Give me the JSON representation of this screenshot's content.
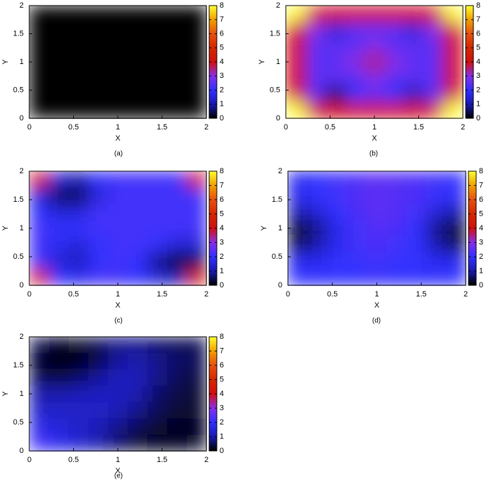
{
  "chart_data": [
    {
      "type": "heatmap",
      "caption": "(a)",
      "xlabel": "X",
      "ylabel": "Y",
      "xlim": [
        0,
        2
      ],
      "ylim": [
        0,
        2
      ],
      "xticks": [
        0,
        0.5,
        1,
        1.5,
        2
      ],
      "yticks": [
        0,
        0.5,
        1,
        1.5,
        2
      ],
      "clim": [
        0,
        8
      ],
      "cticks": [
        0,
        1,
        2,
        3,
        4,
        5,
        6,
        7,
        8
      ],
      "colormap": [
        "#000000",
        "#1a1ab0",
        "#3030ff",
        "#8a2ee8",
        "#d01010",
        "#d42800",
        "#e85010",
        "#f0a000",
        "#ffff30"
      ],
      "z": [
        [
          0,
          0,
          0,
          0,
          0,
          0,
          0,
          0,
          0
        ],
        [
          0,
          0,
          0,
          0,
          0,
          0,
          0,
          0,
          0
        ],
        [
          0,
          0,
          0,
          0,
          0,
          0,
          0,
          0,
          0
        ],
        [
          0,
          0,
          0,
          0,
          0,
          0,
          0,
          0,
          0
        ],
        [
          0,
          0,
          0,
          0,
          0,
          0,
          0,
          0,
          0
        ],
        [
          0,
          0,
          0,
          0,
          0,
          0,
          0,
          0,
          0
        ],
        [
          0,
          0,
          0,
          0,
          0,
          0,
          0,
          0,
          0
        ]
      ]
    },
    {
      "type": "heatmap",
      "caption": "(b)",
      "xlabel": "X",
      "ylabel": "Y",
      "xlim": [
        0,
        2
      ],
      "ylim": [
        0,
        2
      ],
      "xticks": [
        0,
        0.5,
        1,
        1.5,
        2
      ],
      "yticks": [
        0,
        0.5,
        1,
        1.5,
        2
      ],
      "clim": [
        0,
        8
      ],
      "cticks": [
        0,
        1,
        2,
        3,
        4,
        5,
        6,
        7,
        8
      ],
      "colormap": [
        "#000000",
        "#1a1ab0",
        "#3030ff",
        "#8a2ee8",
        "#d01010",
        "#d42800",
        "#e85010",
        "#f0a000",
        "#ffff30"
      ],
      "z": [
        [
          8,
          5,
          4,
          4,
          4,
          4,
          4,
          5,
          8
        ],
        [
          5,
          3,
          1.5,
          2.5,
          2.5,
          2.5,
          1.5,
          3,
          5
        ],
        [
          4,
          2.5,
          2.5,
          2.5,
          3,
          2.5,
          2.5,
          2.5,
          4
        ],
        [
          4,
          2.5,
          2.5,
          3,
          3.5,
          3,
          2.5,
          2.5,
          4
        ],
        [
          4,
          2.5,
          2.5,
          2.5,
          3,
          2.5,
          2.5,
          2.5,
          4
        ],
        [
          5,
          2.5,
          0.5,
          2,
          2.5,
          2,
          1,
          2.5,
          5
        ],
        [
          8,
          5,
          4,
          4,
          4,
          4,
          4,
          5,
          8
        ]
      ]
    },
    {
      "type": "heatmap",
      "caption": "(c)",
      "xlabel": "X",
      "ylabel": "Y",
      "xlim": [
        0,
        2
      ],
      "ylim": [
        0,
        2
      ],
      "xticks": [
        0,
        0.5,
        1,
        1.5,
        2
      ],
      "yticks": [
        0,
        0.5,
        1,
        1.5,
        2
      ],
      "clim": [
        0,
        8
      ],
      "cticks": [
        0,
        1,
        2,
        3,
        4,
        5,
        6,
        7,
        8
      ],
      "colormap": [
        "#000000",
        "#1a1ab0",
        "#3030ff",
        "#8a2ee8",
        "#d01010",
        "#d42800",
        "#e85010",
        "#f0a000",
        "#ffff30"
      ],
      "z": [
        [
          5,
          1.5,
          1,
          2,
          2.2,
          2.2,
          2.2,
          2.2,
          5
        ],
        [
          1.5,
          0.5,
          0.5,
          1.5,
          2.2,
          2.2,
          2.2,
          2.2,
          2.2
        ],
        [
          2,
          1.5,
          1.5,
          2.2,
          2.2,
          2.2,
          2.2,
          2.2,
          2.2
        ],
        [
          2.2,
          2,
          2,
          2.2,
          2.2,
          2.2,
          2.2,
          2.2,
          2.2
        ],
        [
          2.2,
          1.8,
          1.5,
          2,
          2.2,
          2.2,
          2,
          1.5,
          1.5
        ],
        [
          2.2,
          1.5,
          1.2,
          2,
          2.2,
          2,
          0.8,
          0.3,
          0.5
        ],
        [
          5,
          2,
          1.8,
          2.2,
          2.2,
          2,
          1.5,
          1,
          5
        ]
      ]
    },
    {
      "type": "heatmap",
      "caption": "(d)",
      "xlabel": "X",
      "ylabel": "Y",
      "xlim": [
        0,
        2
      ],
      "ylim": [
        0,
        2
      ],
      "xticks": [
        0,
        0.5,
        1,
        1.5,
        2
      ],
      "yticks": [
        0,
        0.5,
        1,
        1.5,
        2
      ],
      "clim": [
        0,
        8
      ],
      "cticks": [
        0,
        1,
        2,
        3,
        4,
        5,
        6,
        7,
        8
      ],
      "colormap": [
        "#000000",
        "#1a1ab0",
        "#3030ff",
        "#8a2ee8",
        "#d01010",
        "#d42800",
        "#e85010",
        "#f0a000",
        "#ffff30"
      ],
      "z": [
        [
          1.8,
          2,
          2.2,
          2.3,
          2.5,
          2.4,
          2.3,
          2.2,
          2
        ],
        [
          1.8,
          2,
          2.2,
          2.4,
          2.5,
          2.4,
          2.3,
          2.1,
          2
        ],
        [
          1,
          1.5,
          2,
          2.3,
          2.5,
          2.4,
          2.2,
          1.5,
          1
        ],
        [
          0.2,
          0.8,
          1.8,
          2.2,
          2.4,
          2.3,
          2,
          0.8,
          0.3
        ],
        [
          0.5,
          1,
          1.8,
          2.2,
          2.3,
          2.2,
          2,
          1,
          0.5
        ],
        [
          1.8,
          1.8,
          2,
          2.1,
          2.2,
          2.1,
          2,
          1.8,
          1.8
        ],
        [
          2,
          2,
          2,
          2,
          2.1,
          2,
          2,
          2,
          2
        ]
      ]
    },
    {
      "type": "heatmap",
      "caption": "(e)",
      "xlabel": "X",
      "ylabel": "Y",
      "xlim": [
        0,
        2
      ],
      "ylim": [
        0,
        2
      ],
      "xticks": [
        0,
        0.5,
        1,
        1.5,
        2
      ],
      "yticks": [
        0,
        0.5,
        1,
        1.5,
        2
      ],
      "clim": [
        0,
        8
      ],
      "cticks": [
        0,
        1,
        2,
        3,
        4,
        5,
        6,
        7,
        8
      ],
      "colormap": [
        "#000000",
        "#1a1ab0",
        "#3030ff",
        "#8a2ee8",
        "#d01010",
        "#d42800",
        "#e85010",
        "#f0a000",
        "#ffff30"
      ],
      "z": [
        [
          0.5,
          0.2,
          0.3,
          0.5,
          0.8,
          0.8,
          0.6,
          0.5,
          0.5
        ],
        [
          0.2,
          0,
          0.1,
          0.4,
          0.9,
          1,
          0.8,
          0.6,
          0.5
        ],
        [
          0.5,
          0.4,
          0.6,
          0.9,
          1.2,
          1.1,
          0.8,
          0.5,
          0.4
        ],
        [
          1,
          1,
          1.1,
          1.2,
          1.2,
          1,
          0.6,
          0.4,
          0.3
        ],
        [
          1.3,
          1.3,
          1.3,
          1.3,
          1.1,
          0.8,
          0.5,
          0.3,
          0.3
        ],
        [
          1.7,
          1.5,
          1.3,
          1.1,
          0.8,
          0.5,
          0.3,
          0.2,
          0.2
        ],
        [
          2.2,
          1.8,
          1.4,
          1,
          0.6,
          0.3,
          0.2,
          0.2,
          0.3
        ]
      ]
    }
  ]
}
